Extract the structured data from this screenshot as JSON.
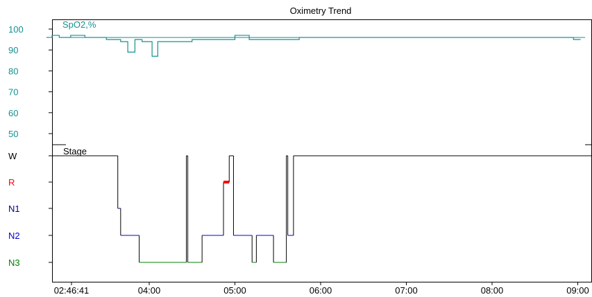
{
  "chart_data": {
    "type": "line",
    "title": "Oximetry Trend",
    "x_ticks": [
      "02:46:41",
      "04:00",
      "05:00",
      "06:00",
      "07:00",
      "08:00",
      "09:00"
    ],
    "spo2": {
      "label": "SpO2,%",
      "unit": "%",
      "yticks": [
        50,
        60,
        70,
        80,
        90,
        100
      ],
      "ylim": [
        45,
        103
      ],
      "color": "#149090",
      "series": [
        [
          "02:48",
          96
        ],
        [
          "02:52",
          97
        ],
        [
          "02:57",
          96
        ],
        [
          "03:05",
          97
        ],
        [
          "03:15",
          96
        ],
        [
          "03:30",
          95
        ],
        [
          "03:40",
          94
        ],
        [
          "03:45",
          89
        ],
        [
          "03:50",
          95
        ],
        [
          "03:55",
          94
        ],
        [
          "04:02",
          87
        ],
        [
          "04:06",
          94
        ],
        [
          "04:15",
          94
        ],
        [
          "04:30",
          95
        ],
        [
          "04:45",
          95
        ],
        [
          "05:00",
          97
        ],
        [
          "05:10",
          95
        ],
        [
          "05:30",
          95
        ],
        [
          "05:45",
          96
        ],
        [
          "06:00",
          96
        ],
        [
          "06:30",
          96
        ],
        [
          "07:00",
          96
        ],
        [
          "07:30",
          96
        ],
        [
          "08:00",
          96
        ],
        [
          "08:30",
          96
        ],
        [
          "08:50",
          96
        ],
        [
          "08:57",
          95
        ],
        [
          "09:02",
          95
        ]
      ]
    },
    "stage": {
      "label": "Stage",
      "levels": [
        "W",
        "R",
        "N1",
        "N2",
        "N3"
      ],
      "level_colors": [
        "#000000",
        "#ff0000",
        "#000080",
        "#0000cc",
        "#008000"
      ],
      "segments": [
        [
          "02:46:41",
          "W"
        ],
        [
          "03:38",
          "N1"
        ],
        [
          "03:40",
          "N2"
        ],
        [
          "03:53",
          "N3"
        ],
        [
          "04:26",
          "W"
        ],
        [
          "04:27",
          "N3"
        ],
        [
          "04:37",
          "N2"
        ],
        [
          "04:52",
          "R"
        ],
        [
          "04:56",
          "W"
        ],
        [
          "04:59",
          "N2"
        ],
        [
          "05:12",
          "N3"
        ],
        [
          "05:15",
          "N2"
        ],
        [
          "05:27",
          "N3"
        ],
        [
          "05:36",
          "W"
        ],
        [
          "05:37",
          "N2"
        ],
        [
          "05:41",
          "W"
        ]
      ],
      "end": "09:05"
    }
  }
}
